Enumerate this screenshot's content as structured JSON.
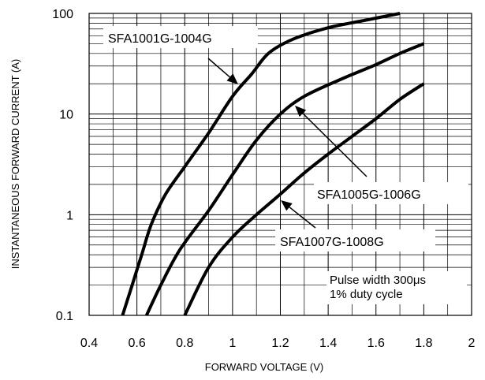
{
  "chart_data": {
    "type": "line",
    "xlabel": "FORWARD VOLTAGE (V)",
    "ylabel": "INSTANTANEOUS FORWARD CURRENT (A)",
    "xlim": [
      0.4,
      2.0
    ],
    "ylim": [
      0.1,
      100
    ],
    "yscale": "log",
    "grid": true,
    "x_ticks": [
      "0.4",
      "0.6",
      "0.8",
      "1",
      "1.2",
      "1.4",
      "1.6",
      "1.8",
      "2"
    ],
    "y_ticks": [
      "0.1",
      "1",
      "10",
      "100"
    ],
    "series": [
      {
        "name": "SFA1001G-1004G",
        "points": [
          [
            0.54,
            0.1
          ],
          [
            0.58,
            0.2
          ],
          [
            0.62,
            0.4
          ],
          [
            0.66,
            0.8
          ],
          [
            0.72,
            1.6
          ],
          [
            0.8,
            3
          ],
          [
            0.9,
            6.5
          ],
          [
            1.0,
            15
          ],
          [
            1.08,
            25
          ],
          [
            1.15,
            40
          ],
          [
            1.25,
            55
          ],
          [
            1.4,
            72
          ],
          [
            1.55,
            85
          ],
          [
            1.7,
            100
          ]
        ]
      },
      {
        "name": "SFA1005G-1006G",
        "points": [
          [
            0.64,
            0.1
          ],
          [
            0.7,
            0.2
          ],
          [
            0.78,
            0.45
          ],
          [
            0.9,
            1.1
          ],
          [
            1.0,
            2.5
          ],
          [
            1.1,
            5.5
          ],
          [
            1.2,
            10
          ],
          [
            1.3,
            15
          ],
          [
            1.45,
            22
          ],
          [
            1.6,
            31
          ],
          [
            1.7,
            40
          ],
          [
            1.8,
            50
          ]
        ]
      },
      {
        "name": "SFA1007G-1008G",
        "points": [
          [
            0.8,
            0.1
          ],
          [
            0.9,
            0.3
          ],
          [
            1.0,
            0.6
          ],
          [
            1.1,
            1.0
          ],
          [
            1.2,
            1.6
          ],
          [
            1.3,
            2.6
          ],
          [
            1.4,
            4.0
          ],
          [
            1.5,
            6.0
          ],
          [
            1.6,
            9.0
          ],
          [
            1.7,
            14
          ],
          [
            1.8,
            20
          ]
        ]
      }
    ],
    "annotation": [
      "Pulse width 300μs",
      "1% duty cycle"
    ]
  }
}
